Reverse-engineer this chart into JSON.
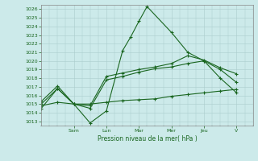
{
  "background_color": "#cceaea",
  "grid_color": "#aacccc",
  "line_color": "#1a6620",
  "xlabel": "Pression niveau de la mer( hPa )",
  "ylim": [
    1012.5,
    1026.5
  ],
  "yticks": [
    1013,
    1014,
    1015,
    1016,
    1017,
    1018,
    1019,
    1020,
    1021,
    1022,
    1023,
    1024,
    1025,
    1026
  ],
  "xlim": [
    0,
    26
  ],
  "x_day_labels": [
    "Sam",
    "Lun",
    "Mar",
    "Mer",
    "Jeu",
    "V"
  ],
  "x_day_positions": [
    4,
    8,
    12,
    16,
    20,
    24
  ],
  "series": [
    {
      "name": "line1_high",
      "x": [
        0,
        2,
        4,
        6,
        8,
        10,
        11,
        12,
        13,
        16,
        18,
        20,
        22,
        24
      ],
      "y": [
        1014.5,
        1016.8,
        1015.0,
        1012.8,
        1014.2,
        1021.2,
        1022.8,
        1024.6,
        1026.3,
        1023.3,
        1021.0,
        1020.0,
        1018.0,
        1016.3
      ]
    },
    {
      "name": "line2_mid_high",
      "x": [
        0,
        2,
        4,
        6,
        8,
        10,
        12,
        14,
        16,
        18,
        20,
        22,
        24
      ],
      "y": [
        1015.3,
        1017.1,
        1015.0,
        1014.8,
        1018.2,
        1018.6,
        1019.0,
        1019.3,
        1019.7,
        1020.6,
        1020.1,
        1019.2,
        1018.5
      ]
    },
    {
      "name": "line3_mid",
      "x": [
        0,
        2,
        4,
        6,
        8,
        10,
        12,
        14,
        16,
        18,
        20,
        22,
        24
      ],
      "y": [
        1015.0,
        1016.8,
        1015.0,
        1014.5,
        1017.8,
        1018.2,
        1018.7,
        1019.1,
        1019.3,
        1019.7,
        1020.0,
        1019.0,
        1017.5
      ]
    },
    {
      "name": "line4_low",
      "x": [
        0,
        2,
        4,
        6,
        8,
        10,
        12,
        14,
        16,
        18,
        20,
        22,
        24
      ],
      "y": [
        1014.8,
        1015.2,
        1015.0,
        1015.0,
        1015.2,
        1015.4,
        1015.5,
        1015.6,
        1015.9,
        1016.1,
        1016.3,
        1016.5,
        1016.7
      ]
    }
  ]
}
